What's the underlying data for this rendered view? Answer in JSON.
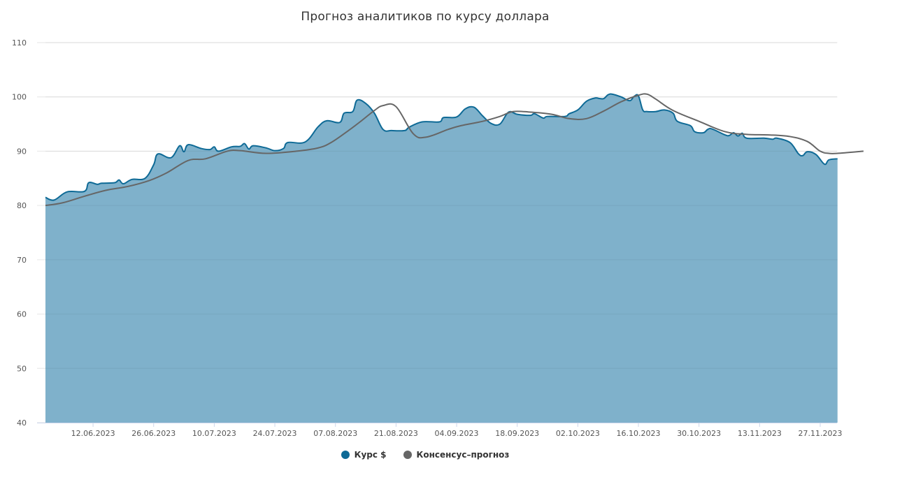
{
  "chart_data": {
    "type": "area",
    "title": "Прогноз аналитиков по курсу доллара",
    "ylim": [
      40,
      110
    ],
    "yticks": [
      40,
      50,
      60,
      70,
      80,
      90,
      100,
      110
    ],
    "x_tick_labels": [
      "12.06.2023",
      "26.06.2023",
      "10.07.2023",
      "24.07.2023",
      "07.08.2023",
      "21.08.2023",
      "04.09.2023",
      "18.09.2023",
      "02.10.2023",
      "16.10.2023",
      "30.10.2023",
      "13.11.2023",
      "27.11.2023"
    ],
    "grid": true,
    "legend_position": "bottom",
    "series": [
      {
        "name": "Курс $",
        "type": "area",
        "color": "#0e6a96",
        "fill": "#7fb1cb",
        "points": [
          [
            "2023-06-01",
            81.5
          ],
          [
            "2023-06-03",
            81.0
          ],
          [
            "2023-06-06",
            82.5
          ],
          [
            "2023-06-10",
            82.6
          ],
          [
            "2023-06-11",
            84.2
          ],
          [
            "2023-06-13",
            83.9
          ],
          [
            "2023-06-14",
            84.1
          ],
          [
            "2023-06-17",
            84.2
          ],
          [
            "2023-06-18",
            84.7
          ],
          [
            "2023-06-19",
            84.0
          ],
          [
            "2023-06-21",
            84.8
          ],
          [
            "2023-06-24",
            85.0
          ],
          [
            "2023-06-26",
            87.5
          ],
          [
            "2023-06-27",
            89.5
          ],
          [
            "2023-06-30",
            88.8
          ],
          [
            "2023-07-02",
            91.0
          ],
          [
            "2023-07-03",
            89.9
          ],
          [
            "2023-07-04",
            91.2
          ],
          [
            "2023-07-07",
            90.5
          ],
          [
            "2023-07-09",
            90.3
          ],
          [
            "2023-07-10",
            90.8
          ],
          [
            "2023-07-11",
            90.0
          ],
          [
            "2023-07-14",
            90.8
          ],
          [
            "2023-07-16",
            90.9
          ],
          [
            "2023-07-17",
            91.4
          ],
          [
            "2023-07-18",
            90.4
          ],
          [
            "2023-07-19",
            91.0
          ],
          [
            "2023-07-22",
            90.6
          ],
          [
            "2023-07-24",
            90.1
          ],
          [
            "2023-07-26",
            90.5
          ],
          [
            "2023-07-27",
            91.6
          ],
          [
            "2023-07-31",
            91.7
          ],
          [
            "2023-08-03",
            94.5
          ],
          [
            "2023-08-05",
            95.6
          ],
          [
            "2023-08-08",
            95.3
          ],
          [
            "2023-08-09",
            97.0
          ],
          [
            "2023-08-11",
            97.3
          ],
          [
            "2023-08-12",
            99.4
          ],
          [
            "2023-08-14",
            98.8
          ],
          [
            "2023-08-16",
            97.0
          ],
          [
            "2023-08-18",
            94.0
          ],
          [
            "2023-08-20",
            93.8
          ],
          [
            "2023-08-23",
            93.8
          ],
          [
            "2023-08-24",
            94.4
          ],
          [
            "2023-08-27",
            95.4
          ],
          [
            "2023-08-31",
            95.4
          ],
          [
            "2023-09-01",
            96.2
          ],
          [
            "2023-09-04",
            96.3
          ],
          [
            "2023-09-06",
            97.8
          ],
          [
            "2023-09-08",
            98.1
          ],
          [
            "2023-09-10",
            96.5
          ],
          [
            "2023-09-12",
            95.1
          ],
          [
            "2023-09-14",
            95.0
          ],
          [
            "2023-09-16",
            97.2
          ],
          [
            "2023-09-18",
            96.8
          ],
          [
            "2023-09-21",
            96.6
          ],
          [
            "2023-09-22",
            96.9
          ],
          [
            "2023-09-24",
            96.1
          ],
          [
            "2023-09-25",
            96.4
          ],
          [
            "2023-09-29",
            96.4
          ],
          [
            "2023-09-30",
            96.9
          ],
          [
            "2023-10-02",
            97.6
          ],
          [
            "2023-10-04",
            99.2
          ],
          [
            "2023-10-06",
            99.8
          ],
          [
            "2023-10-07",
            99.7
          ],
          [
            "2023-10-08",
            99.7
          ],
          [
            "2023-10-09",
            100.4
          ],
          [
            "2023-10-10",
            100.5
          ],
          [
            "2023-10-12",
            100.0
          ],
          [
            "2023-10-14",
            99.3
          ],
          [
            "2023-10-15",
            100.1
          ],
          [
            "2023-10-16",
            100.2
          ],
          [
            "2023-10-17",
            97.6
          ],
          [
            "2023-10-18",
            97.3
          ],
          [
            "2023-10-20",
            97.3
          ],
          [
            "2023-10-22",
            97.6
          ],
          [
            "2023-10-24",
            97.0
          ],
          [
            "2023-10-25",
            95.5
          ],
          [
            "2023-10-28",
            94.7
          ],
          [
            "2023-10-29",
            93.6
          ],
          [
            "2023-10-31",
            93.4
          ],
          [
            "2023-11-01",
            94.0
          ],
          [
            "2023-11-02",
            94.1
          ],
          [
            "2023-11-05",
            93.0
          ],
          [
            "2023-11-06",
            92.9
          ],
          [
            "2023-11-07",
            93.4
          ],
          [
            "2023-11-08",
            92.8
          ],
          [
            "2023-11-09",
            93.3
          ],
          [
            "2023-11-10",
            92.4
          ],
          [
            "2023-11-14",
            92.4
          ],
          [
            "2023-11-16",
            92.2
          ],
          [
            "2023-11-17",
            92.4
          ],
          [
            "2023-11-20",
            91.6
          ],
          [
            "2023-11-22",
            89.5
          ],
          [
            "2023-11-23",
            89.2
          ],
          [
            "2023-11-24",
            89.9
          ],
          [
            "2023-11-26",
            89.4
          ],
          [
            "2023-11-28",
            87.6
          ],
          [
            "2023-11-29",
            88.4
          ],
          [
            "2023-12-01",
            88.6
          ]
        ]
      },
      {
        "name": "Консенсус–прогноз",
        "type": "line",
        "color": "#666666",
        "points": [
          [
            "2023-06-01",
            80.0
          ],
          [
            "2023-06-05",
            80.5
          ],
          [
            "2023-06-10",
            81.7
          ],
          [
            "2023-06-15",
            82.8
          ],
          [
            "2023-06-20",
            83.5
          ],
          [
            "2023-06-25",
            84.6
          ],
          [
            "2023-06-29",
            86.0
          ],
          [
            "2023-07-04",
            88.3
          ],
          [
            "2023-07-08",
            88.6
          ],
          [
            "2023-07-13",
            90.0
          ],
          [
            "2023-07-16",
            90.1
          ],
          [
            "2023-07-22",
            89.6
          ],
          [
            "2023-07-29",
            90.0
          ],
          [
            "2023-08-03",
            90.6
          ],
          [
            "2023-08-06",
            91.6
          ],
          [
            "2023-08-10",
            93.8
          ],
          [
            "2023-08-13",
            95.6
          ],
          [
            "2023-08-16",
            97.5
          ],
          [
            "2023-08-18",
            98.4
          ],
          [
            "2023-08-21",
            98.2
          ],
          [
            "2023-08-25",
            93.2
          ],
          [
            "2023-08-28",
            92.6
          ],
          [
            "2023-09-02",
            94.0
          ],
          [
            "2023-09-05",
            94.7
          ],
          [
            "2023-09-10",
            95.5
          ],
          [
            "2023-09-14",
            96.4
          ],
          [
            "2023-09-17",
            97.3
          ],
          [
            "2023-09-21",
            97.2
          ],
          [
            "2023-09-26",
            96.8
          ],
          [
            "2023-09-30",
            96.0
          ],
          [
            "2023-10-04",
            96.0
          ],
          [
            "2023-10-08",
            97.4
          ],
          [
            "2023-10-12",
            99.1
          ],
          [
            "2023-10-16",
            100.3
          ],
          [
            "2023-10-18",
            100.5
          ],
          [
            "2023-10-20",
            99.6
          ],
          [
            "2023-10-24",
            97.5
          ],
          [
            "2023-10-30",
            95.5
          ],
          [
            "2023-11-05",
            93.6
          ],
          [
            "2023-11-10",
            93.1
          ],
          [
            "2023-11-15",
            93.0
          ],
          [
            "2023-11-20",
            92.7
          ],
          [
            "2023-11-24",
            91.8
          ],
          [
            "2023-11-27",
            90.0
          ],
          [
            "2023-11-29",
            89.6
          ],
          [
            "2023-12-01",
            89.6
          ],
          [
            "2023-12-07",
            90.0
          ]
        ]
      }
    ]
  }
}
